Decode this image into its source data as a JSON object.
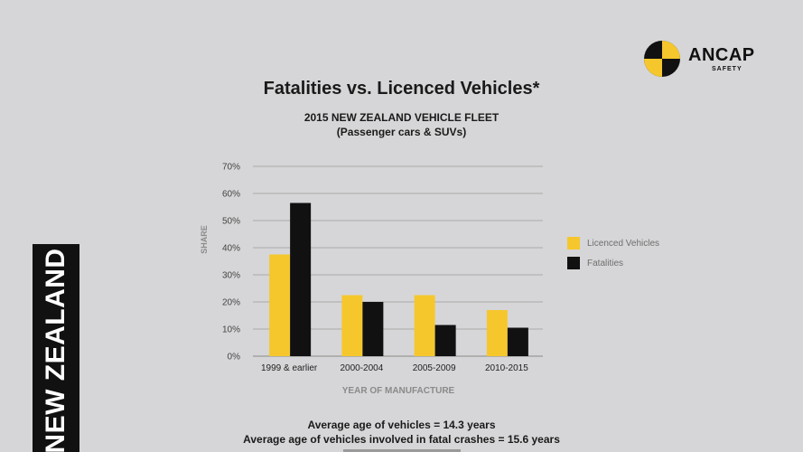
{
  "side_banner": "NEW ZEALAND",
  "logo": {
    "name": "ANCAP",
    "sub": "SAFETY"
  },
  "chart_data": {
    "type": "bar",
    "title": "Fatalities vs. Licenced Vehicles*",
    "subtitle_line1": "2015 NEW ZEALAND VEHICLE FLEET",
    "subtitle_line2": "(Passenger cars & SUVs)",
    "categories": [
      "1999 & earlier",
      "2000-2004",
      "2005-2009",
      "2010-2015"
    ],
    "series": [
      {
        "name": "Licenced Vehicles",
        "values": [
          37.5,
          22.5,
          22.5,
          17
        ],
        "color": "#f5c72d"
      },
      {
        "name": "Fatalities",
        "values": [
          56.5,
          20,
          11.5,
          10.5
        ],
        "color": "#111111"
      }
    ],
    "ylim": [
      0,
      70
    ],
    "yticks": [
      "0%",
      "10%",
      "20%",
      "30%",
      "40%",
      "50%",
      "60%",
      "70%"
    ],
    "xlabel": "YEAR OF MANUFACTURE",
    "ylabel": "SHARE",
    "grid": true,
    "legend_position": "right"
  },
  "footer": {
    "line1": "Average age of vehicles = 14.3 years",
    "line2": "Average age of vehicles involved in fatal crashes = 15.6 years"
  }
}
